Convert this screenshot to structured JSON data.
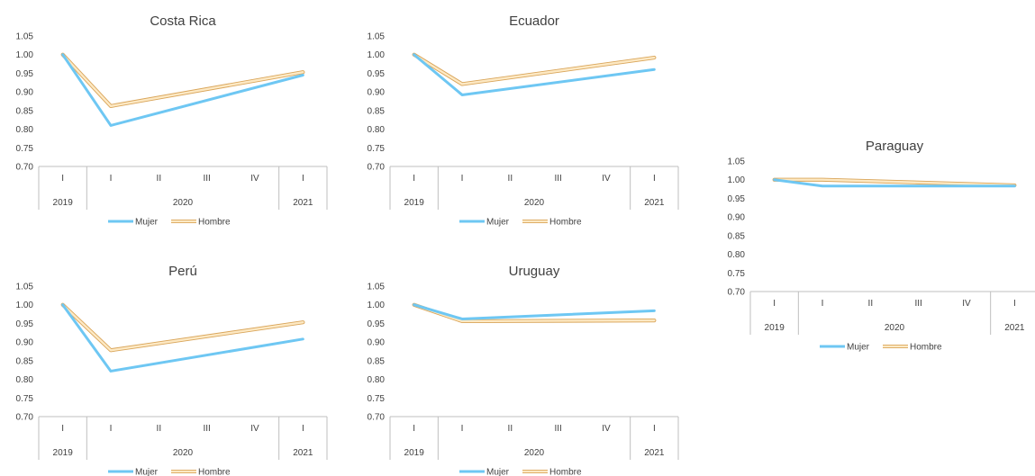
{
  "colors": {
    "mujer": "#6ec7f3",
    "hombre_fill": "#fde9c4",
    "hombre_edge": "#d9a55a",
    "axis": "#bfbfbf",
    "text": "#404040"
  },
  "chart_data": [
    {
      "type": "line",
      "title": "Costa Rica",
      "categories": [
        "I",
        "I",
        "II",
        "III",
        "IV",
        "I"
      ],
      "year_groups": [
        {
          "label": "2019",
          "span": 1
        },
        {
          "label": "2020",
          "span": 4
        },
        {
          "label": "2021",
          "span": 1
        }
      ],
      "ylim": [
        0.7,
        1.05
      ],
      "yticks": [
        "0.70",
        "0.75",
        "0.80",
        "0.85",
        "0.90",
        "0.95",
        "1.00",
        "1.05"
      ],
      "series": [
        {
          "name": "Mujer",
          "points": [
            [
              0,
              1.0
            ],
            [
              1,
              0.81
            ],
            [
              5,
              0.945
            ]
          ]
        },
        {
          "name": "Hombre",
          "points": [
            [
              0,
              1.0
            ],
            [
              1,
              0.862
            ],
            [
              5,
              0.953
            ]
          ]
        }
      ]
    },
    {
      "type": "line",
      "title": "Ecuador",
      "categories": [
        "I",
        "I",
        "II",
        "III",
        "IV",
        "I"
      ],
      "year_groups": [
        {
          "label": "2019",
          "span": 1
        },
        {
          "label": "2020",
          "span": 4
        },
        {
          "label": "2021",
          "span": 1
        }
      ],
      "ylim": [
        0.7,
        1.05
      ],
      "yticks": [
        "0.70",
        "0.75",
        "0.80",
        "0.85",
        "0.90",
        "0.95",
        "1.00",
        "1.05"
      ],
      "series": [
        {
          "name": "Mujer",
          "points": [
            [
              0,
              1.0
            ],
            [
              1,
              0.892
            ],
            [
              5,
              0.96
            ]
          ]
        },
        {
          "name": "Hombre",
          "points": [
            [
              0,
              1.0
            ],
            [
              1,
              0.921
            ],
            [
              5,
              0.992
            ]
          ]
        }
      ]
    },
    {
      "type": "line",
      "title": "Paraguay",
      "categories": [
        "I",
        "I",
        "II",
        "III",
        "IV",
        "I"
      ],
      "year_groups": [
        {
          "label": "2019",
          "span": 1
        },
        {
          "label": "2020",
          "span": 4
        },
        {
          "label": "2021",
          "span": 1
        }
      ],
      "ylim": [
        0.7,
        1.05
      ],
      "yticks": [
        "0.70",
        "0.75",
        "0.80",
        "0.85",
        "0.90",
        "0.95",
        "1.00",
        "1.05"
      ],
      "series": [
        {
          "name": "Mujer",
          "points": [
            [
              0,
              1.0
            ],
            [
              1,
              0.983
            ],
            [
              5,
              0.983
            ]
          ]
        },
        {
          "name": "Hombre",
          "points": [
            [
              0,
              1.0
            ],
            [
              1,
              1.0
            ],
            [
              5,
              0.985
            ]
          ]
        }
      ]
    },
    {
      "type": "line",
      "title": "Perú",
      "categories": [
        "I",
        "I",
        "II",
        "III",
        "IV",
        "I"
      ],
      "year_groups": [
        {
          "label": "2019",
          "span": 1
        },
        {
          "label": "2020",
          "span": 4
        },
        {
          "label": "2021",
          "span": 1
        }
      ],
      "ylim": [
        0.7,
        1.05
      ],
      "yticks": [
        "0.70",
        "0.75",
        "0.80",
        "0.85",
        "0.90",
        "0.95",
        "1.00",
        "1.05"
      ],
      "series": [
        {
          "name": "Mujer",
          "points": [
            [
              0,
              1.0
            ],
            [
              1,
              0.822
            ],
            [
              5,
              0.908
            ]
          ]
        },
        {
          "name": "Hombre",
          "points": [
            [
              0,
              1.0
            ],
            [
              1,
              0.878
            ],
            [
              5,
              0.953
            ]
          ]
        }
      ]
    },
    {
      "type": "line",
      "title": "Uruguay",
      "categories": [
        "I",
        "I",
        "II",
        "III",
        "IV",
        "I"
      ],
      "year_groups": [
        {
          "label": "2019",
          "span": 1
        },
        {
          "label": "2020",
          "span": 4
        },
        {
          "label": "2021",
          "span": 1
        }
      ],
      "ylim": [
        0.7,
        1.05
      ],
      "yticks": [
        "0.70",
        "0.75",
        "0.80",
        "0.85",
        "0.90",
        "0.95",
        "1.00",
        "1.05"
      ],
      "series": [
        {
          "name": "Mujer",
          "points": [
            [
              0,
              1.0
            ],
            [
              1,
              0.962
            ],
            [
              5,
              0.984
            ]
          ]
        },
        {
          "name": "Hombre",
          "points": [
            [
              0,
              1.0
            ],
            [
              1,
              0.956
            ],
            [
              5,
              0.958
            ]
          ]
        }
      ]
    }
  ]
}
